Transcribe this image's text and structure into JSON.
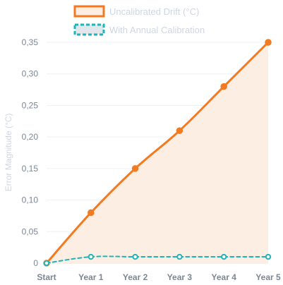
{
  "chart_data": {
    "type": "line",
    "categories": [
      "Start",
      "Year 1",
      "Year 2",
      "Year 3",
      "Year 4",
      "Year 5"
    ],
    "series": [
      {
        "name": "Uncalibrated Drift (°C)",
        "values": [
          0,
          0.08,
          0.15,
          0.21,
          0.28,
          0.35
        ],
        "color": "#f47a20",
        "fill": "#fdeee3",
        "style": "solid"
      },
      {
        "name": "With Annual Calibration",
        "values": [
          0,
          0.01,
          0.01,
          0.01,
          0.01,
          0.01
        ],
        "color": "#1fb5b8",
        "fill": "#e3e6ea",
        "style": "dashed"
      }
    ],
    "ylabel": "Error Magnitude (°C)",
    "ylim": [
      0,
      0.35
    ],
    "yticks": [
      "0",
      "0,05",
      "0,10",
      "0,15",
      "0,20",
      "0,25",
      "0,30",
      "0,35"
    ],
    "grid": {
      "y": true,
      "x": false
    },
    "legend_position": "top-center"
  }
}
